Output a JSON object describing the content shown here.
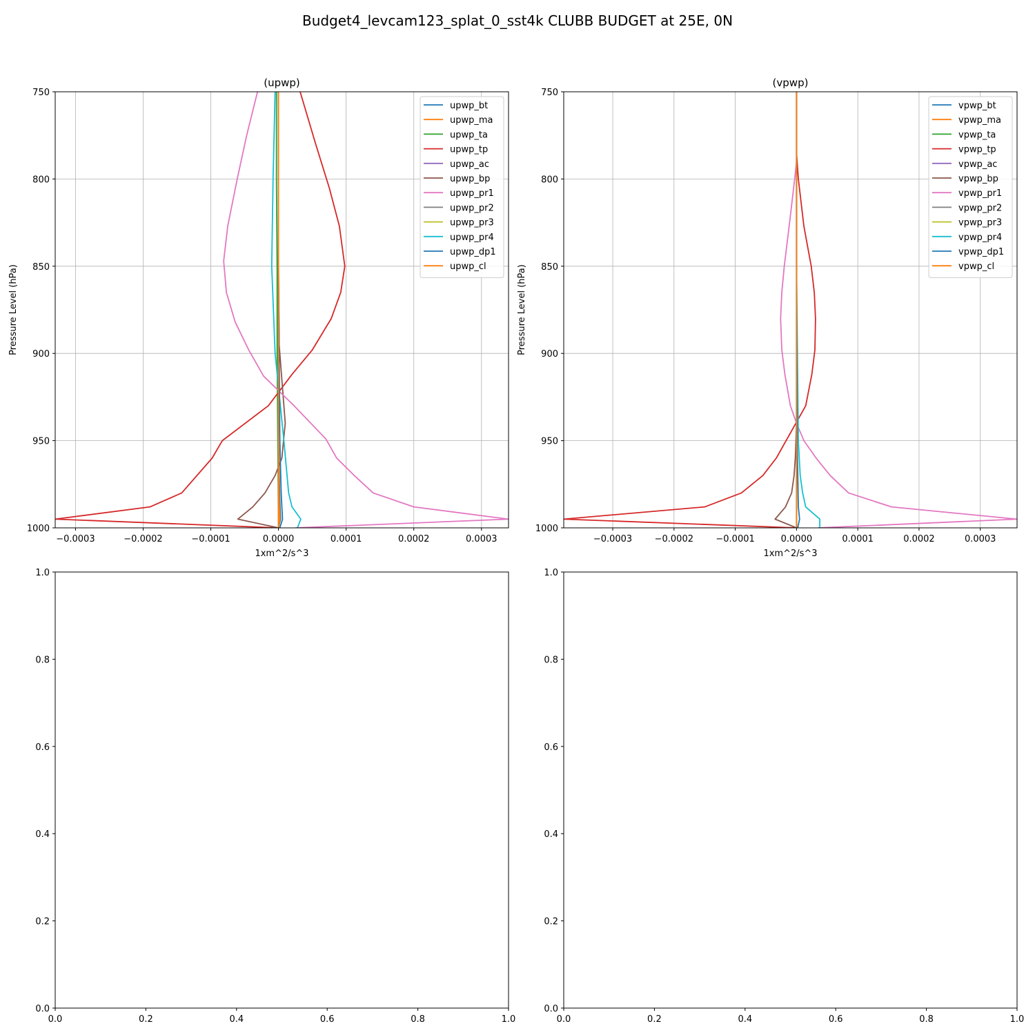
{
  "suptitle": "Budget4_levcam123_splat_0_sst4k CLUBB BUDGET at 25E, 0N",
  "chart_data": [
    {
      "type": "line",
      "title": "(upwp)",
      "xlabel": "1xm^2/s^3",
      "ylabel": "Pressure Level (hPa)",
      "xlim": [
        -0.00033,
        0.00034
      ],
      "ylim": [
        1000,
        750
      ],
      "grid": true,
      "legend": "top-right",
      "xticks": [
        "−0.0003",
        "−0.0002",
        "−0.0001",
        "0.0000",
        "0.0001",
        "0.0002",
        "0.0003"
      ],
      "xtick_values": [
        -0.0003,
        -0.0002,
        -0.0001,
        0.0,
        0.0001,
        0.0002,
        0.0003
      ],
      "yticks": [
        "750",
        "800",
        "850",
        "900",
        "950",
        "1000"
      ],
      "ytick_values": [
        750,
        800,
        850,
        900,
        950,
        1000
      ],
      "series": [
        {
          "name": "upwp_bt",
          "color": "#1f77b4",
          "p": [
            750,
            800,
            850,
            900,
            950,
            985,
            995,
            1000
          ],
          "v": [
            0.0,
            0.0,
            0.0,
            0.0,
            0.0,
            2e-06,
            3e-06,
            0.0
          ]
        },
        {
          "name": "upwp_ma",
          "color": "#ff7f0e",
          "p": [
            750,
            800,
            850,
            900,
            950,
            985,
            995,
            1000
          ],
          "v": [
            0.0,
            0.0,
            0.0,
            0.0,
            0.0,
            1e-06,
            2e-06,
            0.0
          ]
        },
        {
          "name": "upwp_ta",
          "color": "#2ca02c",
          "p": [
            750,
            800,
            850,
            900,
            950,
            1000
          ],
          "v": [
            -3e-06,
            -3e-06,
            -2e-06,
            -2e-06,
            -1e-06,
            0.0
          ]
        },
        {
          "name": "upwp_tp",
          "color": "#d62728",
          "p": [
            750,
            780,
            805,
            827,
            850,
            865,
            880,
            898,
            912,
            930,
            950,
            960,
            980,
            988,
            995,
            1000
          ],
          "v": [
            3.2e-05,
            5.5e-05,
            7.5e-05,
            9e-05,
            9.8e-05,
            9.2e-05,
            7.8e-05,
            5e-05,
            2e-05,
            -1.5e-05,
            -8.3e-05,
            -9.8e-05,
            -0.000143,
            -0.00019,
            -0.00033,
            0.0
          ]
        },
        {
          "name": "upwp_ac",
          "color": "#9467bd",
          "p": [
            750,
            850,
            950,
            1000
          ],
          "v": [
            0.0,
            0.0,
            0.0,
            0.0
          ]
        },
        {
          "name": "upwp_bp",
          "color": "#8c564b",
          "p": [
            750,
            800,
            850,
            895,
            920,
            940,
            960,
            970,
            980,
            988,
            995,
            1000
          ],
          "v": [
            0.0,
            0.0,
            0.0,
            1e-06,
            6e-06,
            1e-05,
            5e-06,
            -5e-06,
            -2e-05,
            -3.8e-05,
            -6e-05,
            0.0
          ]
        },
        {
          "name": "upwp_pr1",
          "color": "#e377c2",
          "p": [
            750,
            775,
            800,
            827,
            847,
            865,
            882,
            898,
            913,
            930,
            949,
            960,
            970,
            980,
            988,
            995,
            1000
          ],
          "v": [
            -3.1e-05,
            -4.7e-05,
            -6.1e-05,
            -7.5e-05,
            -8.1e-05,
            -7.7e-05,
            -6.4e-05,
            -4.4e-05,
            -2.2e-05,
            2.3e-05,
            7e-05,
            8.6e-05,
            0.000112,
            0.00014,
            0.0002,
            0.00034,
            2.5e-05
          ]
        },
        {
          "name": "upwp_pr2",
          "color": "#7f7f7f",
          "p": [
            750,
            850,
            950,
            1000
          ],
          "v": [
            0.0,
            0.0,
            0.0,
            0.0
          ]
        },
        {
          "name": "upwp_pr3",
          "color": "#bcbd22",
          "p": [
            750,
            850,
            950,
            1000
          ],
          "v": [
            0.0,
            0.0,
            0.0,
            0.0
          ]
        },
        {
          "name": "upwp_pr4",
          "color": "#17becf",
          "p": [
            750,
            800,
            850,
            900,
            950,
            980,
            988,
            995,
            1000
          ],
          "v": [
            -5e-06,
            -8e-06,
            -1e-05,
            -5e-06,
            8e-06,
            1.5e-05,
            2e-05,
            3.3e-05,
            2.8e-05
          ]
        },
        {
          "name": "upwp_dp1",
          "color": "#1f77b4",
          "p": [
            750,
            800,
            850,
            900,
            950,
            980,
            988,
            995,
            1000
          ],
          "v": [
            0.0,
            0.0,
            0.0,
            1e-06,
            2e-06,
            4e-06,
            5e-06,
            6e-06,
            2e-06
          ]
        },
        {
          "name": "upwp_cl",
          "color": "#ff7f0e",
          "p": [
            750,
            850,
            950,
            1000
          ],
          "v": [
            0.0,
            0.0,
            0.0,
            0.0
          ]
        }
      ]
    },
    {
      "type": "line",
      "title": "(vpwp)",
      "xlabel": "1xm^2/s^3",
      "ylabel": "Pressure Level (hPa)",
      "xlim": [
        -0.00038,
        0.00036
      ],
      "ylim": [
        1000,
        750
      ],
      "grid": true,
      "legend": "top-right",
      "xticks": [
        "−0.0003",
        "−0.0002",
        "−0.0001",
        "0.0000",
        "0.0001",
        "0.0002",
        "0.0003"
      ],
      "xtick_values": [
        -0.0003,
        -0.0002,
        -0.0001,
        0.0,
        0.0001,
        0.0002,
        0.0003
      ],
      "yticks": [
        "750",
        "800",
        "850",
        "900",
        "950",
        "1000"
      ],
      "ytick_values": [
        750,
        800,
        850,
        900,
        950,
        1000
      ],
      "series": [
        {
          "name": "vpwp_bt",
          "color": "#1f77b4",
          "p": [
            750,
            850,
            950,
            1000
          ],
          "v": [
            0.0,
            0.0,
            0.0,
            0.0
          ]
        },
        {
          "name": "vpwp_ma",
          "color": "#ff7f0e",
          "p": [
            750,
            850,
            950,
            1000
          ],
          "v": [
            0.0,
            0.0,
            0.0,
            0.0
          ]
        },
        {
          "name": "vpwp_ta",
          "color": "#2ca02c",
          "p": [
            750,
            850,
            950,
            1000
          ],
          "v": [
            0.0,
            0.0,
            0.0,
            0.0
          ]
        },
        {
          "name": "vpwp_tp",
          "color": "#d62728",
          "p": [
            750,
            785,
            800,
            827,
            850,
            865,
            880,
            898,
            912,
            930,
            950,
            960,
            970,
            980,
            988,
            995,
            1000
          ],
          "v": [
            0.0,
            0.0,
            3e-06,
            1.2e-05,
            2.4e-05,
            2.9e-05,
            3.1e-05,
            3e-05,
            2.5e-05,
            1.5e-05,
            -1.7e-05,
            -3.3e-05,
            -5.5e-05,
            -9e-05,
            -0.00015,
            -0.00038,
            0.0
          ]
        },
        {
          "name": "vpwp_ac",
          "color": "#9467bd",
          "p": [
            750,
            850,
            950,
            1000
          ],
          "v": [
            0.0,
            0.0,
            0.0,
            0.0
          ]
        },
        {
          "name": "vpwp_bp",
          "color": "#8c564b",
          "p": [
            750,
            850,
            940,
            960,
            970,
            980,
            988,
            995,
            1000
          ],
          "v": [
            0.0,
            0.0,
            0.0,
            -2e-06,
            -4e-06,
            -8e-06,
            -1.8e-05,
            -3.5e-05,
            0.0
          ]
        },
        {
          "name": "vpwp_pr1",
          "color": "#e377c2",
          "p": [
            750,
            790,
            800,
            827,
            850,
            865,
            880,
            898,
            912,
            930,
            940,
            950,
            960,
            970,
            980,
            988,
            995,
            1000
          ],
          "v": [
            0.0,
            0.0,
            -3e-06,
            -1.2e-05,
            -2e-05,
            -2.4e-05,
            -2.6e-05,
            -2.4e-05,
            -1.9e-05,
            -1e-05,
            0.0,
            1.2e-05,
            3.2e-05,
            5.5e-05,
            8.5e-05,
            0.000155,
            0.00036,
            3.5e-05
          ]
        },
        {
          "name": "vpwp_pr2",
          "color": "#7f7f7f",
          "p": [
            750,
            850,
            950,
            1000
          ],
          "v": [
            0.0,
            0.0,
            0.0,
            0.0
          ]
        },
        {
          "name": "vpwp_pr3",
          "color": "#bcbd22",
          "p": [
            750,
            850,
            950,
            1000
          ],
          "v": [
            0.0,
            0.0,
            0.0,
            0.0
          ]
        },
        {
          "name": "vpwp_pr4",
          "color": "#17becf",
          "p": [
            750,
            850,
            950,
            970,
            980,
            988,
            995,
            1000
          ],
          "v": [
            0.0,
            0.0,
            3e-06,
            6e-06,
            1e-05,
            1.5e-05,
            3.8e-05,
            3.8e-05
          ]
        },
        {
          "name": "vpwp_dp1",
          "color": "#1f77b4",
          "p": [
            750,
            850,
            950,
            988,
            995,
            1000
          ],
          "v": [
            0.0,
            0.0,
            1e-06,
            3e-06,
            5e-06,
            2e-06
          ]
        },
        {
          "name": "vpwp_cl",
          "color": "#ff7f0e",
          "p": [
            750,
            850,
            950,
            1000
          ],
          "v": [
            0.0,
            0.0,
            0.0,
            0.0
          ]
        }
      ]
    },
    {
      "type": "line",
      "title": "",
      "xlim": [
        0,
        1
      ],
      "ylim": [
        0,
        1
      ],
      "grid": false,
      "xticks": [
        "0.0",
        "0.2",
        "0.4",
        "0.6",
        "0.8",
        "1.0"
      ],
      "xtick_values": [
        0,
        0.2,
        0.4,
        0.6,
        0.8,
        1.0
      ],
      "yticks": [
        "0.0",
        "0.2",
        "0.4",
        "0.6",
        "0.8",
        "1.0"
      ],
      "ytick_values": [
        0,
        0.2,
        0.4,
        0.6,
        0.8,
        1.0
      ],
      "series": []
    },
    {
      "type": "line",
      "title": "",
      "xlim": [
        0,
        1
      ],
      "ylim": [
        0,
        1
      ],
      "grid": false,
      "xticks": [
        "0.0",
        "0.2",
        "0.4",
        "0.6",
        "0.8",
        "1.0"
      ],
      "xtick_values": [
        0,
        0.2,
        0.4,
        0.6,
        0.8,
        1.0
      ],
      "yticks": [
        "0.0",
        "0.2",
        "0.4",
        "0.6",
        "0.8",
        "1.0"
      ],
      "ytick_values": [
        0,
        0.2,
        0.4,
        0.6,
        0.8,
        1.0
      ],
      "series": []
    }
  ]
}
